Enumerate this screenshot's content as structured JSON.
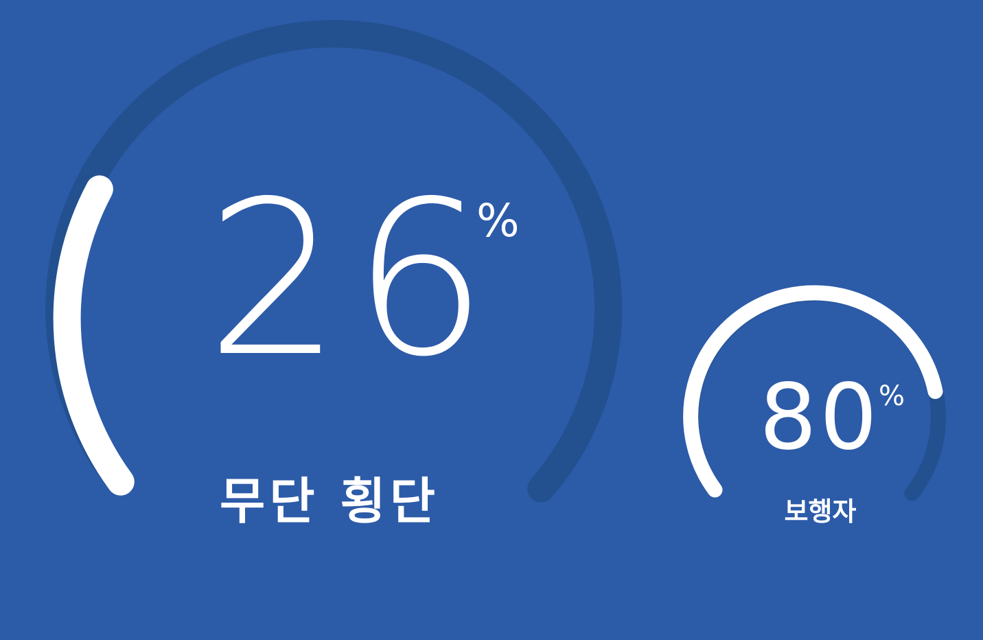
{
  "colors": {
    "background": "#2c5ba8",
    "track": "#23508f",
    "fill": "#ffffff",
    "text": "#ffffff"
  },
  "gauges": [
    {
      "value": "26",
      "unit": "%",
      "label": "무단 횡단",
      "progress": 0.26
    },
    {
      "value": "80",
      "unit": "%",
      "label": "보행자",
      "progress": 0.8
    }
  ]
}
